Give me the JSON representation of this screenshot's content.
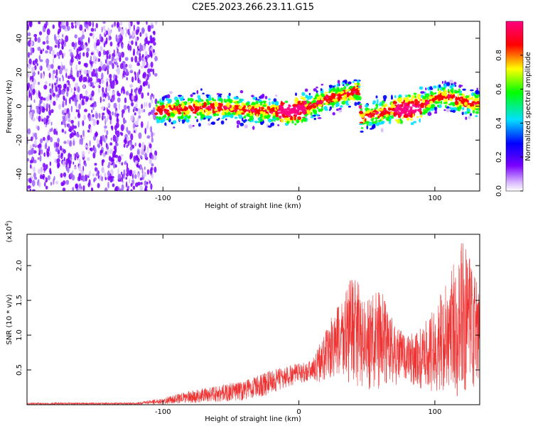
{
  "title": "C2E5.2023.266.23.11.G15",
  "chart_data": [
    {
      "type": "heatmap",
      "xlabel": "Height of straight line (km)",
      "ylabel": "Frequency (Hz)",
      "xlim": [
        -200,
        133
      ],
      "ylim": [
        -50,
        50
      ],
      "x_ticks": [
        -100,
        0,
        100
      ],
      "y_ticks": [
        -40,
        -20,
        0,
        20,
        40
      ],
      "colorbar": {
        "label": "Normalized spectral amplitude",
        "range": [
          0,
          1
        ],
        "ticks": [
          0.0,
          0.2,
          0.4,
          0.6,
          0.8
        ],
        "colors": [
          "#ffffff",
          "#7a00ff",
          "#0000ff",
          "#00e0ff",
          "#00ff00",
          "#ffff00",
          "#ff0000",
          "#ff0080"
        ]
      },
      "ridge": {
        "x": [
          -105,
          -90,
          -70,
          -50,
          -30,
          -10,
          0,
          10,
          20,
          30,
          40,
          44,
          46,
          50,
          60,
          70,
          80,
          90,
          100,
          110,
          120,
          133
        ],
        "y": [
          -3,
          -2,
          -1,
          -1,
          -3,
          -3,
          -2,
          0,
          4,
          6,
          8,
          10,
          -8,
          -6,
          -4,
          -2,
          -2,
          0,
          5,
          6,
          3,
          1
        ]
      },
      "noise_region": {
        "x": [
          -200,
          -105
        ],
        "y": [
          -50,
          50
        ]
      }
    },
    {
      "type": "line",
      "xlabel": "Height of straight line (km)",
      "ylabel": "SNR (10 * v/v)",
      "y_multiplier": "(x10",
      "y_multiplier_exp": "4",
      "y_multiplier_close": ")",
      "xlim": [
        -200,
        133
      ],
      "ylim": [
        0,
        24500
      ],
      "x_ticks": [
        -100,
        0,
        100
      ],
      "y_ticks": [
        5000,
        10000,
        15000,
        20000
      ],
      "y_tick_labels": [
        "0.5",
        "1.0",
        "1.5",
        "2.0"
      ],
      "color": "#ee3333",
      "envelope": {
        "x": [
          -200,
          -120,
          -100,
          -80,
          -60,
          -40,
          -20,
          0,
          10,
          20,
          30,
          40,
          50,
          60,
          70,
          80,
          90,
          100,
          110,
          120,
          133
        ],
        "upper": [
          300,
          300,
          1000,
          2000,
          2800,
          3500,
          5000,
          6000,
          6500,
          11000,
          15000,
          19000,
          15000,
          17000,
          12000,
          10000,
          11000,
          14000,
          19000,
          24000,
          17000
        ],
        "lower": [
          0,
          0,
          100,
          200,
          300,
          600,
          1500,
          3000,
          3500,
          3000,
          3000,
          2500,
          2000,
          2000,
          2500,
          3000,
          2000,
          1500,
          1000,
          500,
          1000
        ]
      }
    }
  ]
}
